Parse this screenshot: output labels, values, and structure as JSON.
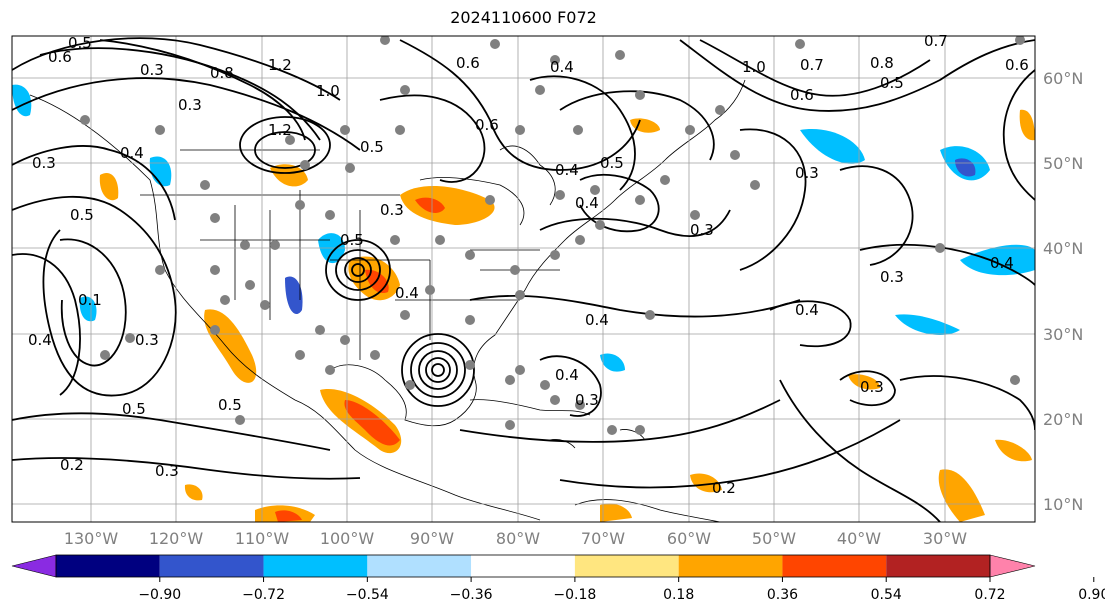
{
  "title": "2024110600 F072",
  "lon_labels": [
    "130°W",
    "120°W",
    "110°W",
    "100°W",
    "90°W",
    "80°W",
    "70°W",
    "60°W",
    "50°W",
    "40°W",
    "30°W"
  ],
  "lat_labels": [
    "60°N",
    "50°N",
    "40°N",
    "30°N",
    "20°N",
    "10°N"
  ],
  "colorbar": {
    "tick_labels": [
      "−0.90",
      "−0.72",
      "−0.54",
      "−0.36",
      "−0.18",
      "0.18",
      "0.36",
      "0.54",
      "0.72",
      "0.90"
    ],
    "colors": [
      "#8a2be2",
      "#000080",
      "#3355cc",
      "#00bfff",
      "#b0e0ff",
      "#ffffff",
      "#ffe680",
      "#ffa500",
      "#ff4500",
      "#b22222",
      "#ff82ab"
    ]
  },
  "contour_labels": [
    "0.6",
    "0.5",
    "0.3",
    "0.8",
    "1.2",
    "1.0",
    "0.3",
    "0.6",
    "0.4",
    "0.4",
    "0.5",
    "0.3",
    "1.2",
    "0.5",
    "0.5",
    "0.4",
    "0.3",
    "0.6",
    "0.4",
    "0.1",
    "0.4",
    "0.3",
    "0.4",
    "0.3",
    "0.5",
    "0.5",
    "0.2",
    "0.3",
    "0.4",
    "0.2",
    "0.4",
    "0.3",
    "0.3",
    "0.4",
    "0.3",
    "1.0",
    "0.7",
    "0.8",
    "0.6",
    "0.7",
    "0.5",
    "0.3",
    "0.4",
    "0.5",
    "0.6"
  ],
  "colors": {
    "contour": "#000000",
    "gridline": "#a0a0a0",
    "station": "#808080",
    "land": "#ffffff"
  }
}
